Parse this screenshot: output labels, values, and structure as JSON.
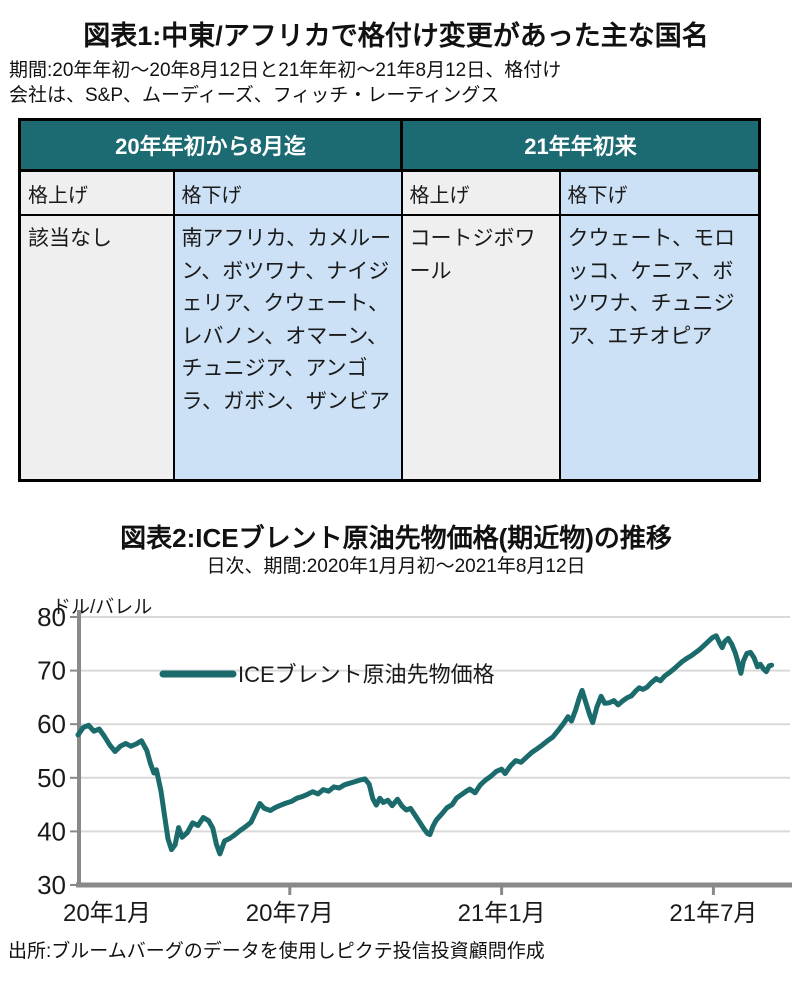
{
  "figure1": {
    "title": "図表1:中東/アフリカで格付け変更があった主な国名",
    "subtitle_line1": "期間:20年年初〜20年8月12日と21年年初〜21年8月12日、格付け",
    "subtitle_line2": "会社は、S&P、ムーディーズ、フィッチ・レーティングス",
    "table": {
      "groups": [
        "20年年初から8月迄",
        "21年年初来"
      ],
      "columns": [
        "格上げ",
        "格下げ",
        "格上げ",
        "格下げ"
      ],
      "rows": [
        [
          "該当なし",
          "南アフリカ、カメルーン、ボツワナ、ナイジェリア、クウェート、レバノン、オマーン、チュニジア、アンゴラ、ガボン、ザンビア",
          "コートジボワール",
          "クウェート、モロッコ、ケニア、ボツワナ、チュニジア、エチオピア"
        ]
      ]
    }
  },
  "figure2": {
    "title": "図表2:ICEブレント原油先物価格(期近物)の推移",
    "subtitle": "日次、期間:2020年1月月初〜2021年8月12日",
    "unit_label": "ドル/バレル",
    "source": "出所:ブルームバーグのデータを使用しピクテ投信投資顧問作成"
  },
  "chart_data": {
    "type": "line",
    "title": "図表2:ICEブレント原油先物価格(期近物)の推移",
    "subtitle": "日次、期間:2020年1月月初〜2021年8月12日",
    "ylabel": "ドル/バレル",
    "ylim": [
      30,
      80
    ],
    "yticks": [
      30,
      40,
      50,
      60,
      70,
      80
    ],
    "x_unit": "months since 2020-01-01",
    "xlim": [
      0,
      20.2
    ],
    "xticks": [
      {
        "m": 0,
        "label": "20年1月"
      },
      {
        "m": 6,
        "label": "20年7月"
      },
      {
        "m": 12,
        "label": "21年1月"
      },
      {
        "m": 18,
        "label": "21年7月"
      }
    ],
    "grid": "horizontal",
    "legend_position": "inside-top-left",
    "series": [
      {
        "name": "ICEブレント原油先物価格",
        "color": "#1B6A6C",
        "points": [
          [
            0.0,
            58.0
          ],
          [
            0.15,
            59.4
          ],
          [
            0.3,
            59.8
          ],
          [
            0.45,
            58.7
          ],
          [
            0.6,
            59.1
          ],
          [
            0.75,
            57.7
          ],
          [
            0.9,
            56.1
          ],
          [
            1.05,
            54.9
          ],
          [
            1.2,
            55.9
          ],
          [
            1.35,
            56.4
          ],
          [
            1.5,
            55.9
          ],
          [
            1.65,
            56.3
          ],
          [
            1.8,
            56.9
          ],
          [
            1.95,
            55.1
          ],
          [
            2.05,
            52.7
          ],
          [
            2.15,
            50.9
          ],
          [
            2.22,
            51.5
          ],
          [
            2.35,
            47.5
          ],
          [
            2.45,
            43.0
          ],
          [
            2.55,
            38.6
          ],
          [
            2.65,
            36.6
          ],
          [
            2.75,
            37.5
          ],
          [
            2.85,
            40.7
          ],
          [
            2.95,
            38.9
          ],
          [
            3.1,
            39.8
          ],
          [
            3.25,
            41.6
          ],
          [
            3.4,
            41.1
          ],
          [
            3.55,
            42.6
          ],
          [
            3.7,
            42.0
          ],
          [
            3.82,
            40.6
          ],
          [
            3.92,
            37.6
          ],
          [
            4.02,
            35.8
          ],
          [
            4.15,
            38.2
          ],
          [
            4.3,
            38.7
          ],
          [
            4.45,
            39.4
          ],
          [
            4.6,
            40.2
          ],
          [
            4.75,
            40.9
          ],
          [
            4.9,
            41.7
          ],
          [
            5.05,
            43.8
          ],
          [
            5.15,
            45.2
          ],
          [
            5.28,
            44.3
          ],
          [
            5.45,
            43.9
          ],
          [
            5.6,
            44.5
          ],
          [
            5.75,
            44.9
          ],
          [
            5.9,
            45.3
          ],
          [
            6.05,
            45.6
          ],
          [
            6.2,
            46.2
          ],
          [
            6.35,
            46.5
          ],
          [
            6.5,
            46.9
          ],
          [
            6.65,
            47.4
          ],
          [
            6.8,
            47.0
          ],
          [
            6.95,
            47.8
          ],
          [
            7.1,
            47.5
          ],
          [
            7.25,
            48.3
          ],
          [
            7.4,
            48.1
          ],
          [
            7.55,
            48.7
          ],
          [
            7.7,
            49.0
          ],
          [
            7.85,
            49.3
          ],
          [
            8.0,
            49.6
          ],
          [
            8.13,
            49.8
          ],
          [
            8.25,
            48.8
          ],
          [
            8.35,
            46.1
          ],
          [
            8.45,
            44.9
          ],
          [
            8.55,
            46.2
          ],
          [
            8.65,
            45.4
          ],
          [
            8.78,
            45.8
          ],
          [
            8.9,
            44.8
          ],
          [
            9.05,
            46.0
          ],
          [
            9.18,
            44.7
          ],
          [
            9.3,
            44.0
          ],
          [
            9.42,
            44.3
          ],
          [
            9.55,
            43.0
          ],
          [
            9.68,
            41.7
          ],
          [
            9.8,
            40.5
          ],
          [
            9.9,
            39.6
          ],
          [
            9.97,
            39.4
          ],
          [
            10.05,
            40.9
          ],
          [
            10.15,
            42.1
          ],
          [
            10.3,
            43.2
          ],
          [
            10.45,
            44.4
          ],
          [
            10.6,
            45.0
          ],
          [
            10.72,
            46.2
          ],
          [
            10.85,
            46.8
          ],
          [
            11.0,
            47.5
          ],
          [
            11.1,
            47.9
          ],
          [
            11.25,
            47.2
          ],
          [
            11.4,
            48.7
          ],
          [
            11.55,
            49.6
          ],
          [
            11.7,
            50.3
          ],
          [
            11.85,
            51.2
          ],
          [
            12.0,
            51.6
          ],
          [
            12.1,
            50.8
          ],
          [
            12.25,
            52.2
          ],
          [
            12.4,
            53.2
          ],
          [
            12.55,
            52.9
          ],
          [
            12.7,
            53.8
          ],
          [
            12.85,
            54.7
          ],
          [
            13.0,
            55.4
          ],
          [
            13.15,
            56.1
          ],
          [
            13.3,
            56.9
          ],
          [
            13.45,
            57.6
          ],
          [
            13.6,
            58.8
          ],
          [
            13.75,
            60.1
          ],
          [
            13.88,
            61.4
          ],
          [
            13.98,
            60.6
          ],
          [
            14.1,
            62.7
          ],
          [
            14.2,
            64.9
          ],
          [
            14.28,
            66.3
          ],
          [
            14.38,
            64.2
          ],
          [
            14.5,
            61.7
          ],
          [
            14.58,
            60.3
          ],
          [
            14.7,
            63.2
          ],
          [
            14.82,
            65.2
          ],
          [
            14.92,
            63.9
          ],
          [
            15.05,
            64.0
          ],
          [
            15.18,
            64.4
          ],
          [
            15.3,
            63.6
          ],
          [
            15.42,
            64.3
          ],
          [
            15.55,
            64.9
          ],
          [
            15.68,
            65.3
          ],
          [
            15.8,
            66.2
          ],
          [
            15.9,
            66.8
          ],
          [
            16.0,
            66.5
          ],
          [
            16.12,
            66.9
          ],
          [
            16.25,
            67.8
          ],
          [
            16.38,
            68.5
          ],
          [
            16.5,
            68.1
          ],
          [
            16.62,
            69.0
          ],
          [
            16.75,
            69.6
          ],
          [
            16.88,
            70.3
          ],
          [
            17.0,
            71.0
          ],
          [
            17.12,
            71.7
          ],
          [
            17.25,
            72.3
          ],
          [
            17.38,
            72.8
          ],
          [
            17.5,
            73.4
          ],
          [
            17.62,
            74.0
          ],
          [
            17.75,
            74.8
          ],
          [
            17.88,
            75.6
          ],
          [
            17.98,
            76.2
          ],
          [
            18.08,
            76.5
          ],
          [
            18.18,
            75.1
          ],
          [
            18.25,
            74.3
          ],
          [
            18.32,
            75.4
          ],
          [
            18.42,
            76.0
          ],
          [
            18.52,
            74.9
          ],
          [
            18.62,
            73.3
          ],
          [
            18.7,
            71.5
          ],
          [
            18.78,
            69.5
          ],
          [
            18.85,
            71.8
          ],
          [
            18.95,
            73.2
          ],
          [
            19.05,
            73.4
          ],
          [
            19.15,
            72.4
          ],
          [
            19.25,
            70.7
          ],
          [
            19.33,
            71.2
          ],
          [
            19.42,
            70.3
          ],
          [
            19.5,
            69.8
          ],
          [
            19.58,
            70.9
          ],
          [
            19.65,
            71.0
          ]
        ]
      }
    ]
  },
  "colors": {
    "header_teal": "#1C6B72",
    "line_teal": "#1B6A6C",
    "cell_blue": "#CCE1F5",
    "cell_gray": "#EFEFEF",
    "grid_gray": "#D9D9D9",
    "axis_gray": "#898989"
  }
}
